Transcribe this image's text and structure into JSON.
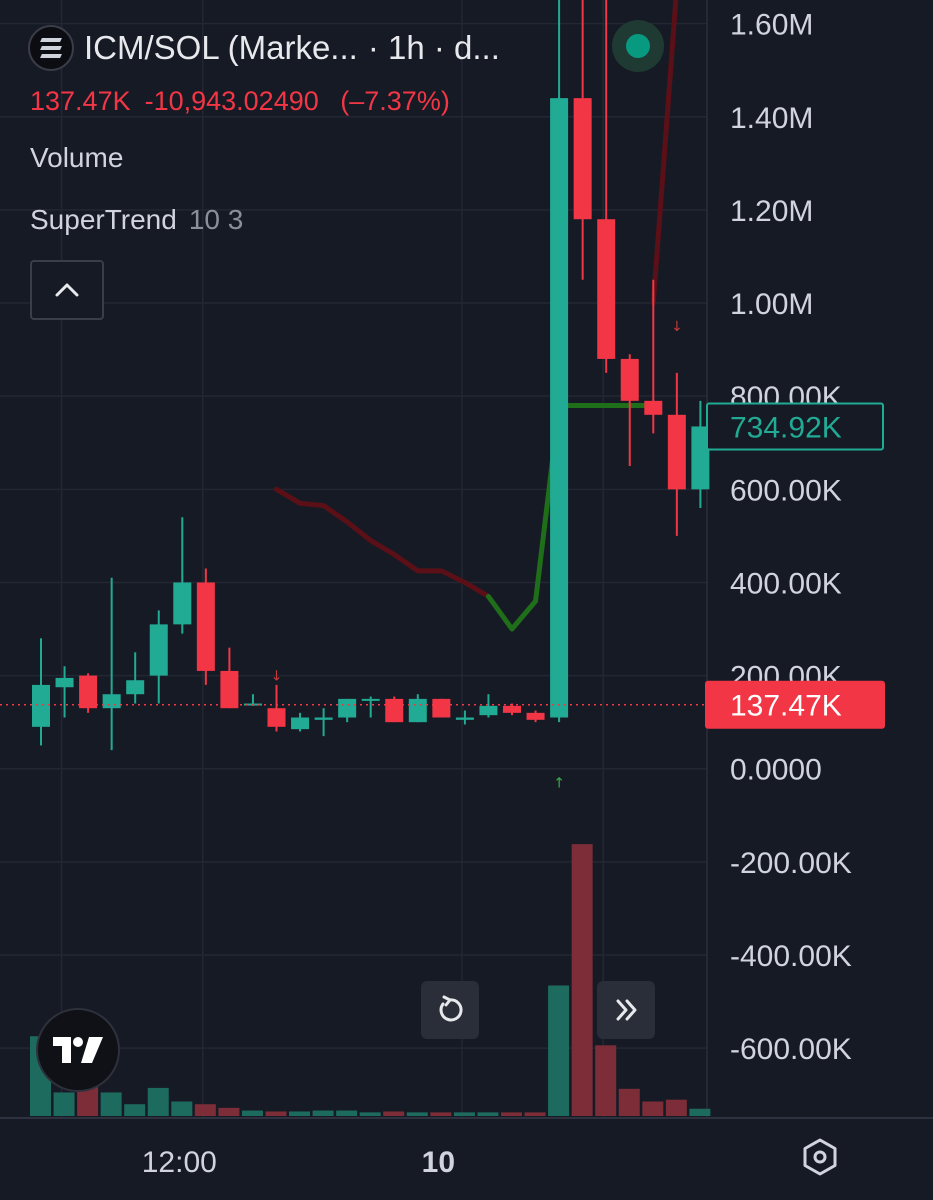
{
  "header": {
    "symbol": "ICM/SOL (Marke...",
    "interval": "· 1h · d...",
    "price": "137.47K",
    "change": "-10,943.02490",
    "change_pct": "(–7.37%)"
  },
  "indicators": {
    "volume_label": "Volume",
    "supertrend_label": "SuperTrend",
    "supertrend_params": "10 3"
  },
  "colors": {
    "up": "#22ab94",
    "down": "#f23645",
    "vol_up": "#1d6b5e",
    "vol_down": "#7c2d38",
    "supertrend_up": "#1f6e1a",
    "supertrend_down": "#5a1016",
    "grid": "#232733",
    "axis_text": "#d1d4dc"
  },
  "icons": {
    "collapse": "chevron-up-icon",
    "reset": "refresh-icon",
    "scroll": "double-chevron-right-icon",
    "logo": "tradingview-logo",
    "settings": "hexagon-settings-icon",
    "status": "green-dot-icon"
  },
  "chart_data": {
    "type": "candlestick",
    "title": "ICM/SOL (Marke... · 1h · d...",
    "x_tick_labels": [
      "12:00",
      "10"
    ],
    "x_tick_at_candle": [
      6,
      17
    ],
    "y_tick_values": [
      1600000,
      1400000,
      1200000,
      1000000,
      800000,
      600000,
      400000,
      200000,
      0,
      -200000,
      -400000,
      -600000
    ],
    "y_tick_labels": [
      "1.60M",
      "1.40M",
      "1.20M",
      "1.00M",
      "800.00K",
      "600.00K",
      "400.00K",
      "200.00K",
      "0.0000",
      "-200.00K",
      "-400.00K",
      "-600.00K"
    ],
    "ylim": [
      -750000,
      1640000
    ],
    "current_price": 137470,
    "current_price_label": "137.47K",
    "highlight_price": 734920,
    "highlight_price_label": "734.92K",
    "candles": [
      {
        "o": 90000,
        "h": 280000,
        "l": 50000,
        "c": 180000
      },
      {
        "o": 175000,
        "h": 220000,
        "l": 110000,
        "c": 195000
      },
      {
        "o": 200000,
        "h": 205000,
        "l": 120000,
        "c": 130000
      },
      {
        "o": 130000,
        "h": 410000,
        "l": 40000,
        "c": 160000
      },
      {
        "o": 160000,
        "h": 250000,
        "l": 140000,
        "c": 190000
      },
      {
        "o": 200000,
        "h": 340000,
        "l": 140000,
        "c": 310000
      },
      {
        "o": 310000,
        "h": 540000,
        "l": 290000,
        "c": 400000
      },
      {
        "o": 400000,
        "h": 430000,
        "l": 180000,
        "c": 210000
      },
      {
        "o": 210000,
        "h": 260000,
        "l": 130000,
        "c": 130000
      },
      {
        "o": 140000,
        "h": 160000,
        "l": 135000,
        "c": 140000
      },
      {
        "o": 130000,
        "h": 180000,
        "l": 80000,
        "c": 90000
      },
      {
        "o": 85000,
        "h": 120000,
        "l": 80000,
        "c": 110000
      },
      {
        "o": 105000,
        "h": 130000,
        "l": 70000,
        "c": 110000
      },
      {
        "o": 110000,
        "h": 150000,
        "l": 100000,
        "c": 150000
      },
      {
        "o": 150000,
        "h": 155000,
        "l": 110000,
        "c": 150000
      },
      {
        "o": 150000,
        "h": 155000,
        "l": 100000,
        "c": 100000
      },
      {
        "o": 100000,
        "h": 160000,
        "l": 100000,
        "c": 150000
      },
      {
        "o": 150000,
        "h": 150000,
        "l": 110000,
        "c": 110000
      },
      {
        "o": 105000,
        "h": 125000,
        "l": 95000,
        "c": 110000
      },
      {
        "o": 115000,
        "h": 160000,
        "l": 110000,
        "c": 135000
      },
      {
        "o": 135000,
        "h": 140000,
        "l": 115000,
        "c": 120000
      },
      {
        "o": 120000,
        "h": 125000,
        "l": 100000,
        "c": 105000
      },
      {
        "o": 110000,
        "h": 1720000,
        "l": 100000,
        "c": 1440000
      },
      {
        "o": 1440000,
        "h": 1720000,
        "l": 1050000,
        "c": 1180000
      },
      {
        "o": 1180000,
        "h": 1720000,
        "l": 850000,
        "c": 880000
      },
      {
        "o": 880000,
        "h": 890000,
        "l": 650000,
        "c": 790000
      },
      {
        "o": 790000,
        "h": 1050000,
        "l": 720000,
        "c": 760000
      },
      {
        "o": 760000,
        "h": 850000,
        "l": 500000,
        "c": 600000
      },
      {
        "o": 600000,
        "h": 790000,
        "l": 560000,
        "c": 735000
      }
    ],
    "volume": [
      440,
      130,
      240,
      130,
      65,
      155,
      80,
      65,
      45,
      30,
      25,
      25,
      30,
      30,
      20,
      25,
      20,
      20,
      20,
      20,
      20,
      20,
      720,
      1500,
      390,
      150,
      80,
      90,
      40
    ],
    "volume_max": 1600,
    "supertrend_down": [
      [
        10,
        600000
      ],
      [
        11,
        570000
      ],
      [
        12,
        565000
      ],
      [
        13,
        530000
      ],
      [
        14,
        490000
      ],
      [
        15,
        460000
      ],
      [
        16,
        425000
      ],
      [
        17,
        425000
      ],
      [
        18,
        400000
      ],
      [
        19,
        370000
      ]
    ],
    "supertrend_up": [
      [
        19,
        370000
      ],
      [
        20,
        300000
      ],
      [
        21,
        360000
      ],
      [
        22,
        780000
      ],
      [
        23,
        780000
      ],
      [
        24,
        780000
      ],
      [
        25,
        780000
      ],
      [
        26,
        780000
      ]
    ],
    "supertrend_down_2": [
      [
        26,
        1000000
      ],
      [
        27,
        1680000
      ]
    ],
    "signals": [
      {
        "candle": 10,
        "price": 190000,
        "direction": "down"
      },
      {
        "candle": 22,
        "price": -40000,
        "direction": "up"
      },
      {
        "candle": 27,
        "price": 940000,
        "direction": "down"
      }
    ]
  }
}
